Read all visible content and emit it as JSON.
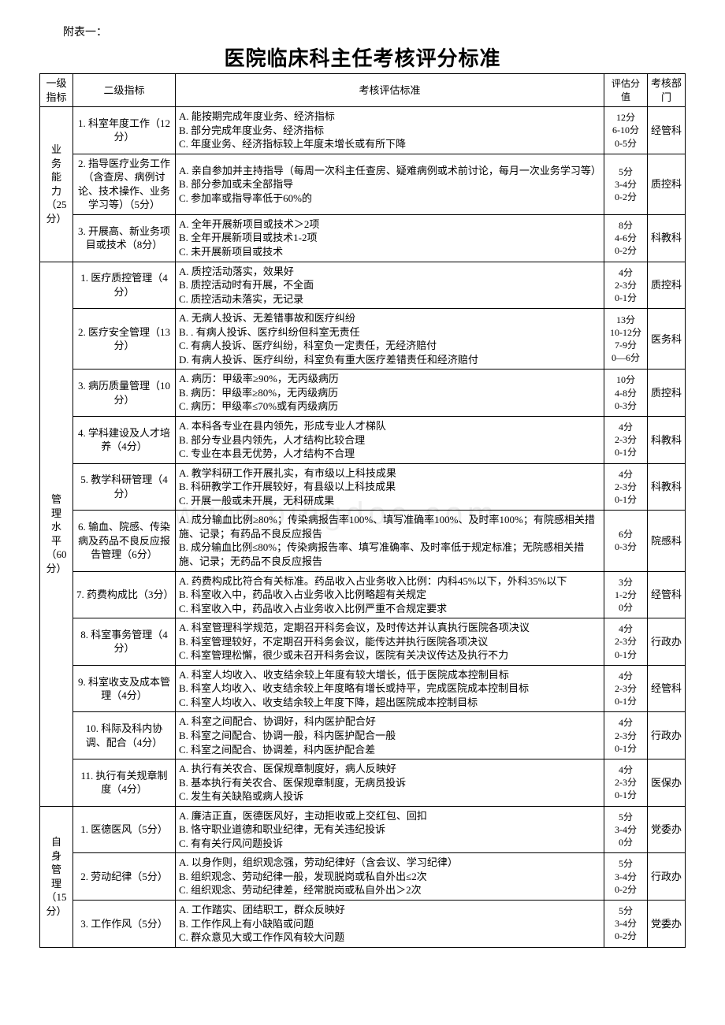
{
  "attachment_label": "附表一：",
  "title": "医院临床科主任考核评分标准",
  "watermark": "www.bingdoc.com",
  "headers": {
    "level1": "一级指标",
    "level2": "二级指标",
    "criteria": "考核评估标准",
    "score": "评估分值",
    "dept": "考核部门"
  },
  "sections": [
    {
      "l1_name": "业务能力",
      "l1_score": "（25分）",
      "rows": [
        {
          "l2": "1. 科室年度工作（12分）",
          "criteria": [
            "A. 能按期完成年度业务、经济指标",
            "B. 部分完成年度业务、经济指标",
            "C. 年度业务、经济指标较上年度未增长或有所下降"
          ],
          "scores": [
            "12分",
            "6-10分",
            "0-5分"
          ],
          "dept": "经管科"
        },
        {
          "l2": "2. 指导医疗业务工作（含查房、病例讨论、技术操作、业务学习等）（5分）",
          "criteria": [
            "A. 亲自参加并主持指导（每周一次科主任查房、疑难病例或术前讨论，每月一次业务学习等）",
            "B. 部分参加或未全部指导",
            "C. 参加率或指导率低于60%的"
          ],
          "scores": [
            "5分",
            "3-4分",
            "0-2分"
          ],
          "dept": "质控科"
        },
        {
          "l2": "3. 开展高、新业务项目或技术（8分）",
          "criteria": [
            "A. 全年开展新项目或技术＞2项",
            "B. 全年开展新项目或技术1-2项",
            "C. 未开展新项目或技术"
          ],
          "scores": [
            "8分",
            "4-6分",
            "0-2分"
          ],
          "dept": "科教科"
        }
      ]
    },
    {
      "l1_name": "管理水平",
      "l1_score": "（60分）",
      "rows": [
        {
          "l2": "1. 医疗质控管理（4分）",
          "criteria": [
            "A. 质控活动落实，效果好",
            "B. 质控活动时有开展，不全面",
            "C. 质控活动未落实，无记录"
          ],
          "scores": [
            "4分",
            "2-3分",
            "0-1分"
          ],
          "dept": "质控科"
        },
        {
          "l2": "2. 医疗安全管理（13分）",
          "criteria": [
            "A. 无病人投诉、无差错事故和医疗纠纷",
            "B. . 有病人投诉、医疗纠纷但科室无责任",
            "C. 有病人投诉、医疗纠纷，科室负一定责任，无经济赔付",
            "D. 有病人投诉、医疗纠纷，科室负有重大医疗差错责任和经济赔付"
          ],
          "scores": [
            "13分",
            "10-12分",
            "7-9分",
            "0—6分"
          ],
          "dept": "医务科"
        },
        {
          "l2": "3. 病历质量管理（10分）",
          "criteria": [
            "A. 病历：甲级率≥90%，无丙级病历",
            "B. 病历：甲级率≥80%，无丙级病历",
            "C. 病历：甲级率≤70%或有丙级病历"
          ],
          "scores": [
            "10分",
            "4-8分",
            "0-3分"
          ],
          "dept": "质控科"
        },
        {
          "l2": "4. 学科建设及人才培养（4分）",
          "criteria": [
            "A. 本科各专业在县内领先，形成专业人才梯队",
            "B. 部分专业县内领先，人才结构比较合理",
            "C. 专业在本县无优势，人才结构不合理"
          ],
          "scores": [
            "4分",
            "2-3分",
            "0-1分"
          ],
          "dept": "科教科"
        },
        {
          "l2": "5. 教学科研管理（4分）",
          "criteria": [
            "A. 教学科研工作开展扎实，有市级以上科技成果",
            "B. 科研教学工作开展较好，有县级以上科技成果",
            "C. 开展一般或未开展，无科研成果"
          ],
          "scores": [
            "4分",
            "2-3分",
            "0-1分"
          ],
          "dept": "科教科"
        },
        {
          "l2": "6. 输血、院感、传染病及药品不良反应报告管理（6分）",
          "criteria": [
            "A. 成分输血比例≥80%；传染病报告率100%、填写准确率100%、及时率100%；有院感相关措施、记录；有药品不良反应报告",
            "B. 成分输血比例≤80%；传染病报告率、填写准确率、及时率低于规定标准；无院感相关措施、记录；无药品不良反应报告"
          ],
          "scores": [
            "6分",
            "",
            "0-3分"
          ],
          "dept": "院感科"
        },
        {
          "l2": "7. 药费构成比（3分）",
          "criteria": [
            "A. 药费构成比符合有关标准。药品收入占业务收入比例：内科45%以下，外科35%以下",
            "B. 科室收入中，药品收入占业务收入比例略超有关规定",
            "C. 科室收入中，药品收入占业务收入比例严重不合规定要求"
          ],
          "scores": [
            "3分",
            "1-2分",
            "0分"
          ],
          "dept": "经管科"
        },
        {
          "l2": "8. 科室事务管理（4分）",
          "criteria": [
            "A. 科室管理科学规范，定期召开科务会议，及时传达并认真执行医院各项决议",
            "B. 科室管理较好，不定期召开科务会议，能传达并执行医院各项决议",
            "C. 科室管理松懈，很少或未召开科务会议，医院有关决议传达及执行不力"
          ],
          "scores": [
            "4分",
            "2-3分",
            "0-1分"
          ],
          "dept": "行政办"
        },
        {
          "l2": "9. 科室收支及成本管理（4分）",
          "criteria": [
            "A. 科室人均收入、收支结余较上年度有较大增长，低于医院成本控制目标",
            "B. 科室人均收入、收支结余较上年度略有增长或持平，完成医院成本控制目标",
            "C. 科室人均收入、收支结余较上年度下降，超出医院成本控制目标"
          ],
          "scores": [
            "4分",
            "2-3分",
            "0-1分"
          ],
          "dept": "经管科"
        },
        {
          "l2": "10. 科际及科内协调、配合（4分）",
          "criteria": [
            "A. 科室之间配合、协调好，科内医护配合好",
            "B. 科室之间配合、协调一般，科内医护配合一般",
            "C. 科室之间配合、协调差，科内医护配合差"
          ],
          "scores": [
            "4分",
            "2-3分",
            "0-1分"
          ],
          "dept": "行政办"
        },
        {
          "l2": "11. 执行有关规章制度（4分）",
          "criteria": [
            "A. 执行有关农合、医保规章制度好，病人反映好",
            "B. 基本执行有关农合、医保规章制度，无病员投诉",
            "C. 发生有关缺陷或病人投诉"
          ],
          "scores": [
            "4分",
            "2-3分",
            "0-1分"
          ],
          "dept": "医保办"
        }
      ]
    },
    {
      "l1_name": "自身管理",
      "l1_score": "（15分）",
      "rows": [
        {
          "l2": "1. 医德医风（5分）",
          "criteria": [
            "A. 廉洁正直，医德医风好，主动拒收或上交红包、回扣",
            "B. 恪守职业道德和职业纪律，无有关违纪投诉",
            "C. 有有关行风问题投诉"
          ],
          "scores": [
            "5分",
            "3-4分",
            "0分"
          ],
          "dept": "党委办"
        },
        {
          "l2": "2. 劳动纪律（5分）",
          "criteria": [
            "A. 以身作则，组织观念强，劳动纪律好（含会议、学习纪律）",
            "B. 组织观念、劳动纪律一般，发现脱岗或私自外出≤2次",
            "C. 组织观念、劳动纪律差，经常脱岗或私自外出＞2次"
          ],
          "scores": [
            "5分",
            "3-4分",
            "0-2分"
          ],
          "dept": "行政办"
        },
        {
          "l2": "3. 工作作风（5分）",
          "criteria": [
            "A. 工作踏实、团结职工，群众反映好",
            "B. 工作作风上有小缺陷或问题",
            "C. 群众意见大或工作作风有较大问题"
          ],
          "scores": [
            "5分",
            "3-4分",
            "0-2分"
          ],
          "dept": "党委办"
        }
      ]
    }
  ]
}
